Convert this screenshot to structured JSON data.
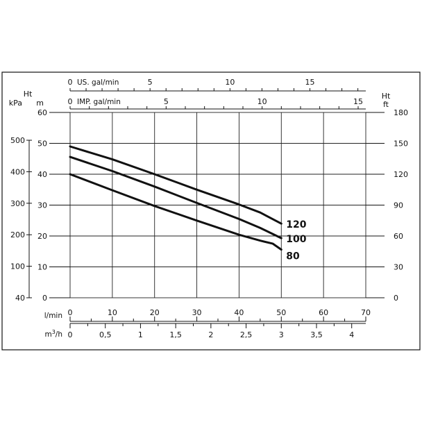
{
  "chart_data": {
    "type": "line",
    "x_axes": {
      "l_min": {
        "label": "l/min",
        "ticks": [
          "0",
          "10",
          "20",
          "30",
          "40",
          "50",
          "60",
          "70"
        ]
      },
      "m3_h": {
        "label": "m3/h",
        "ticks": [
          "0",
          "0,5",
          "1",
          "1,5",
          "2",
          "2,5",
          "3",
          "3,5",
          "4"
        ]
      },
      "us_gal_min": {
        "label": "US. gal/min",
        "ticks": [
          "0",
          "5",
          "10",
          "15"
        ]
      },
      "imp_gal_min": {
        "label": "IMP. gal/min",
        "ticks": [
          "0",
          "5",
          "10",
          "15"
        ]
      }
    },
    "y_axes": {
      "kpa": {
        "label": "kPa",
        "ticks": [
          "40",
          "100",
          "200",
          "300",
          "400",
          "500"
        ]
      },
      "m": {
        "label_top": "Ht",
        "label": "m",
        "ticks": [
          "0",
          "10",
          "20",
          "30",
          "40",
          "50",
          "60"
        ]
      },
      "ft": {
        "label_top": "Ht",
        "label": "ft",
        "ticks": [
          "0",
          "30",
          "60",
          "90",
          "120",
          "150",
          "180"
        ]
      }
    },
    "xlim": [
      0,
      70
    ],
    "ylim": [
      0,
      60
    ],
    "grid": true,
    "series": [
      {
        "name": "120",
        "x": [
          0,
          10,
          20,
          30,
          40,
          45,
          50
        ],
        "y": [
          49,
          44.8,
          40,
          35,
          30.2,
          27.6,
          24
        ]
      },
      {
        "name": "100",
        "x": [
          0,
          10,
          20,
          30,
          40,
          45,
          50
        ],
        "y": [
          45.6,
          41,
          36,
          30.7,
          25.5,
          22.6,
          19.3
        ]
      },
      {
        "name": "80",
        "x": [
          0,
          10,
          20,
          30,
          40,
          45,
          48,
          50
        ],
        "y": [
          40,
          34.8,
          29.7,
          25,
          20.4,
          18.5,
          17.5,
          15.6
        ]
      }
    ]
  }
}
